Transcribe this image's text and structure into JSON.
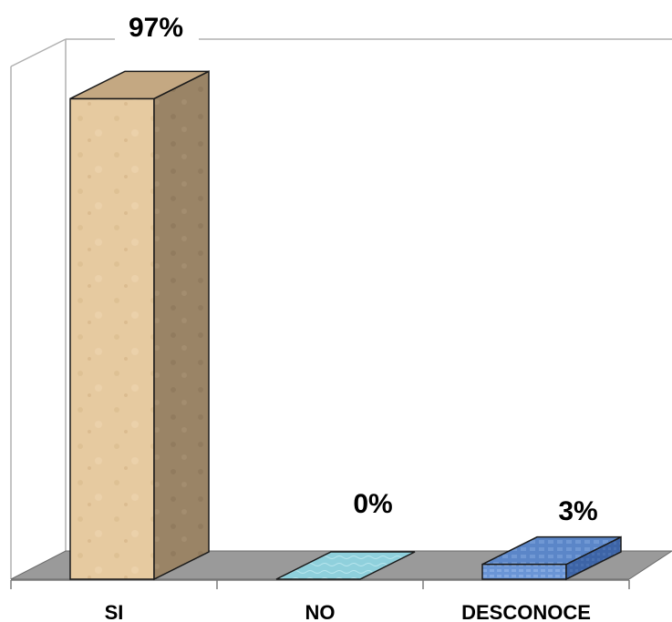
{
  "chart_data": {
    "type": "bar",
    "style": "3d-column",
    "categories": [
      "SI",
      "NO",
      "DESCONOCE"
    ],
    "values": [
      97,
      0,
      3
    ],
    "data_labels": [
      "97%",
      "0%",
      "3%"
    ],
    "ylim": [
      0,
      100
    ],
    "title": "",
    "xlabel": "",
    "ylabel": "",
    "grid": false,
    "legend": "none",
    "colors": {
      "SI_front": "#e6caa0",
      "SI_side": "#9a8466",
      "SI_top": "#c4a882",
      "NO_top": "#8fd0dc",
      "DESCONOCE_front": "#6a95d6",
      "DESCONOCE_side": "#3d64a6",
      "DESCONOCE_top": "#5b86c8",
      "floor": "#9a9a9a",
      "wall_line": "#b0b0b0"
    }
  }
}
